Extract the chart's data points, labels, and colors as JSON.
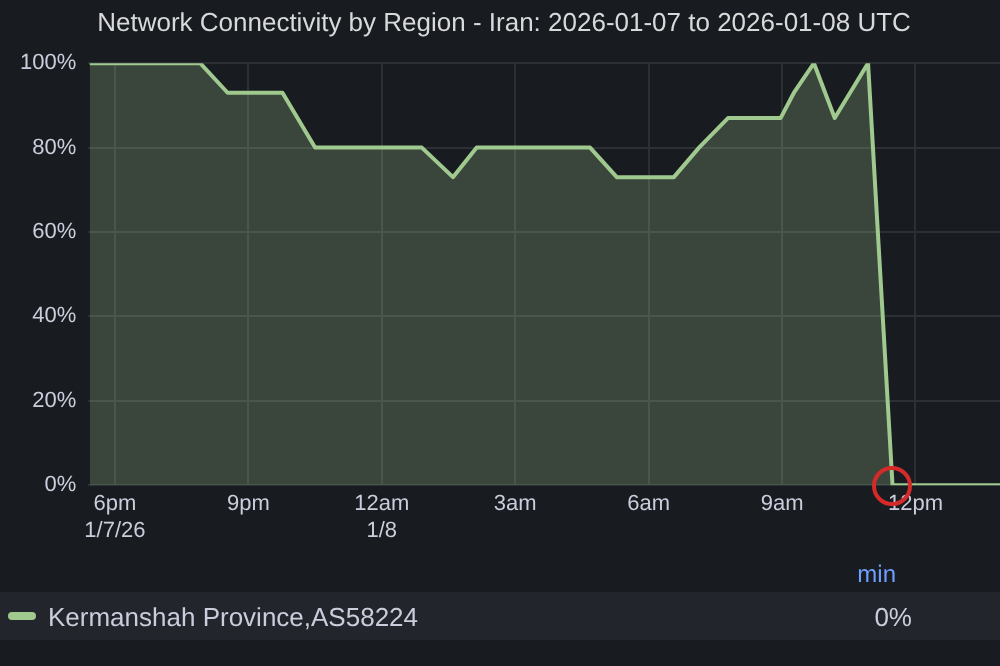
{
  "chart_data": {
    "type": "area",
    "title": "Network Connectivity by Region - Iran: 2026-01-07 to 2026-01-08 UTC",
    "x": [
      "2026-01-07T17:26",
      "2026-01-07T19:55",
      "2026-01-07T20:32",
      "2026-01-07T21:46",
      "2026-01-07T22:30",
      "2026-01-08T00:54",
      "2026-01-08T01:36",
      "2026-01-08T02:08",
      "2026-01-08T04:41",
      "2026-01-08T05:17",
      "2026-01-08T06:34",
      "2026-01-08T07:08",
      "2026-01-08T07:47",
      "2026-01-08T08:58",
      "2026-01-08T09:16",
      "2026-01-08T09:43",
      "2026-01-08T10:11",
      "2026-01-08T10:56",
      "2026-01-08T11:29",
      "2026-01-08T13:54"
    ],
    "series": [
      {
        "name": "Kermanshah Province,AS58224",
        "color": "#9fc98f",
        "values": [
          100,
          100,
          93,
          93,
          80,
          80,
          73,
          80,
          80,
          73,
          73,
          80,
          87,
          87,
          93,
          100,
          87,
          100,
          0,
          0
        ]
      }
    ],
    "xlim": [
      "2026-01-07T17:24",
      "2026-01-08T13:54"
    ],
    "xticks": [
      {
        "value": "2026-01-07T18:00",
        "label": "6pm\n1/7/26"
      },
      {
        "value": "2026-01-07T21:00",
        "label": "9pm"
      },
      {
        "value": "2026-01-08T00:00",
        "label": "12am\n1/8"
      },
      {
        "value": "2026-01-08T03:00",
        "label": "3am"
      },
      {
        "value": "2026-01-08T06:00",
        "label": "6am"
      },
      {
        "value": "2026-01-08T09:00",
        "label": "9am"
      },
      {
        "value": "2026-01-08T12:00",
        "label": "12pm"
      }
    ],
    "ylim": [
      0,
      100
    ],
    "yticks": [
      {
        "value": 0,
        "label": "0%"
      },
      {
        "value": 20,
        "label": "20%"
      },
      {
        "value": 40,
        "label": "40%"
      },
      {
        "value": 60,
        "label": "60%"
      },
      {
        "value": 80,
        "label": "80%"
      },
      {
        "value": 100,
        "label": "100%"
      }
    ],
    "grid": true,
    "legend": "bottom",
    "marker": "none",
    "line_style": "solid",
    "annotations": [
      "min",
      "0%"
    ]
  }
}
